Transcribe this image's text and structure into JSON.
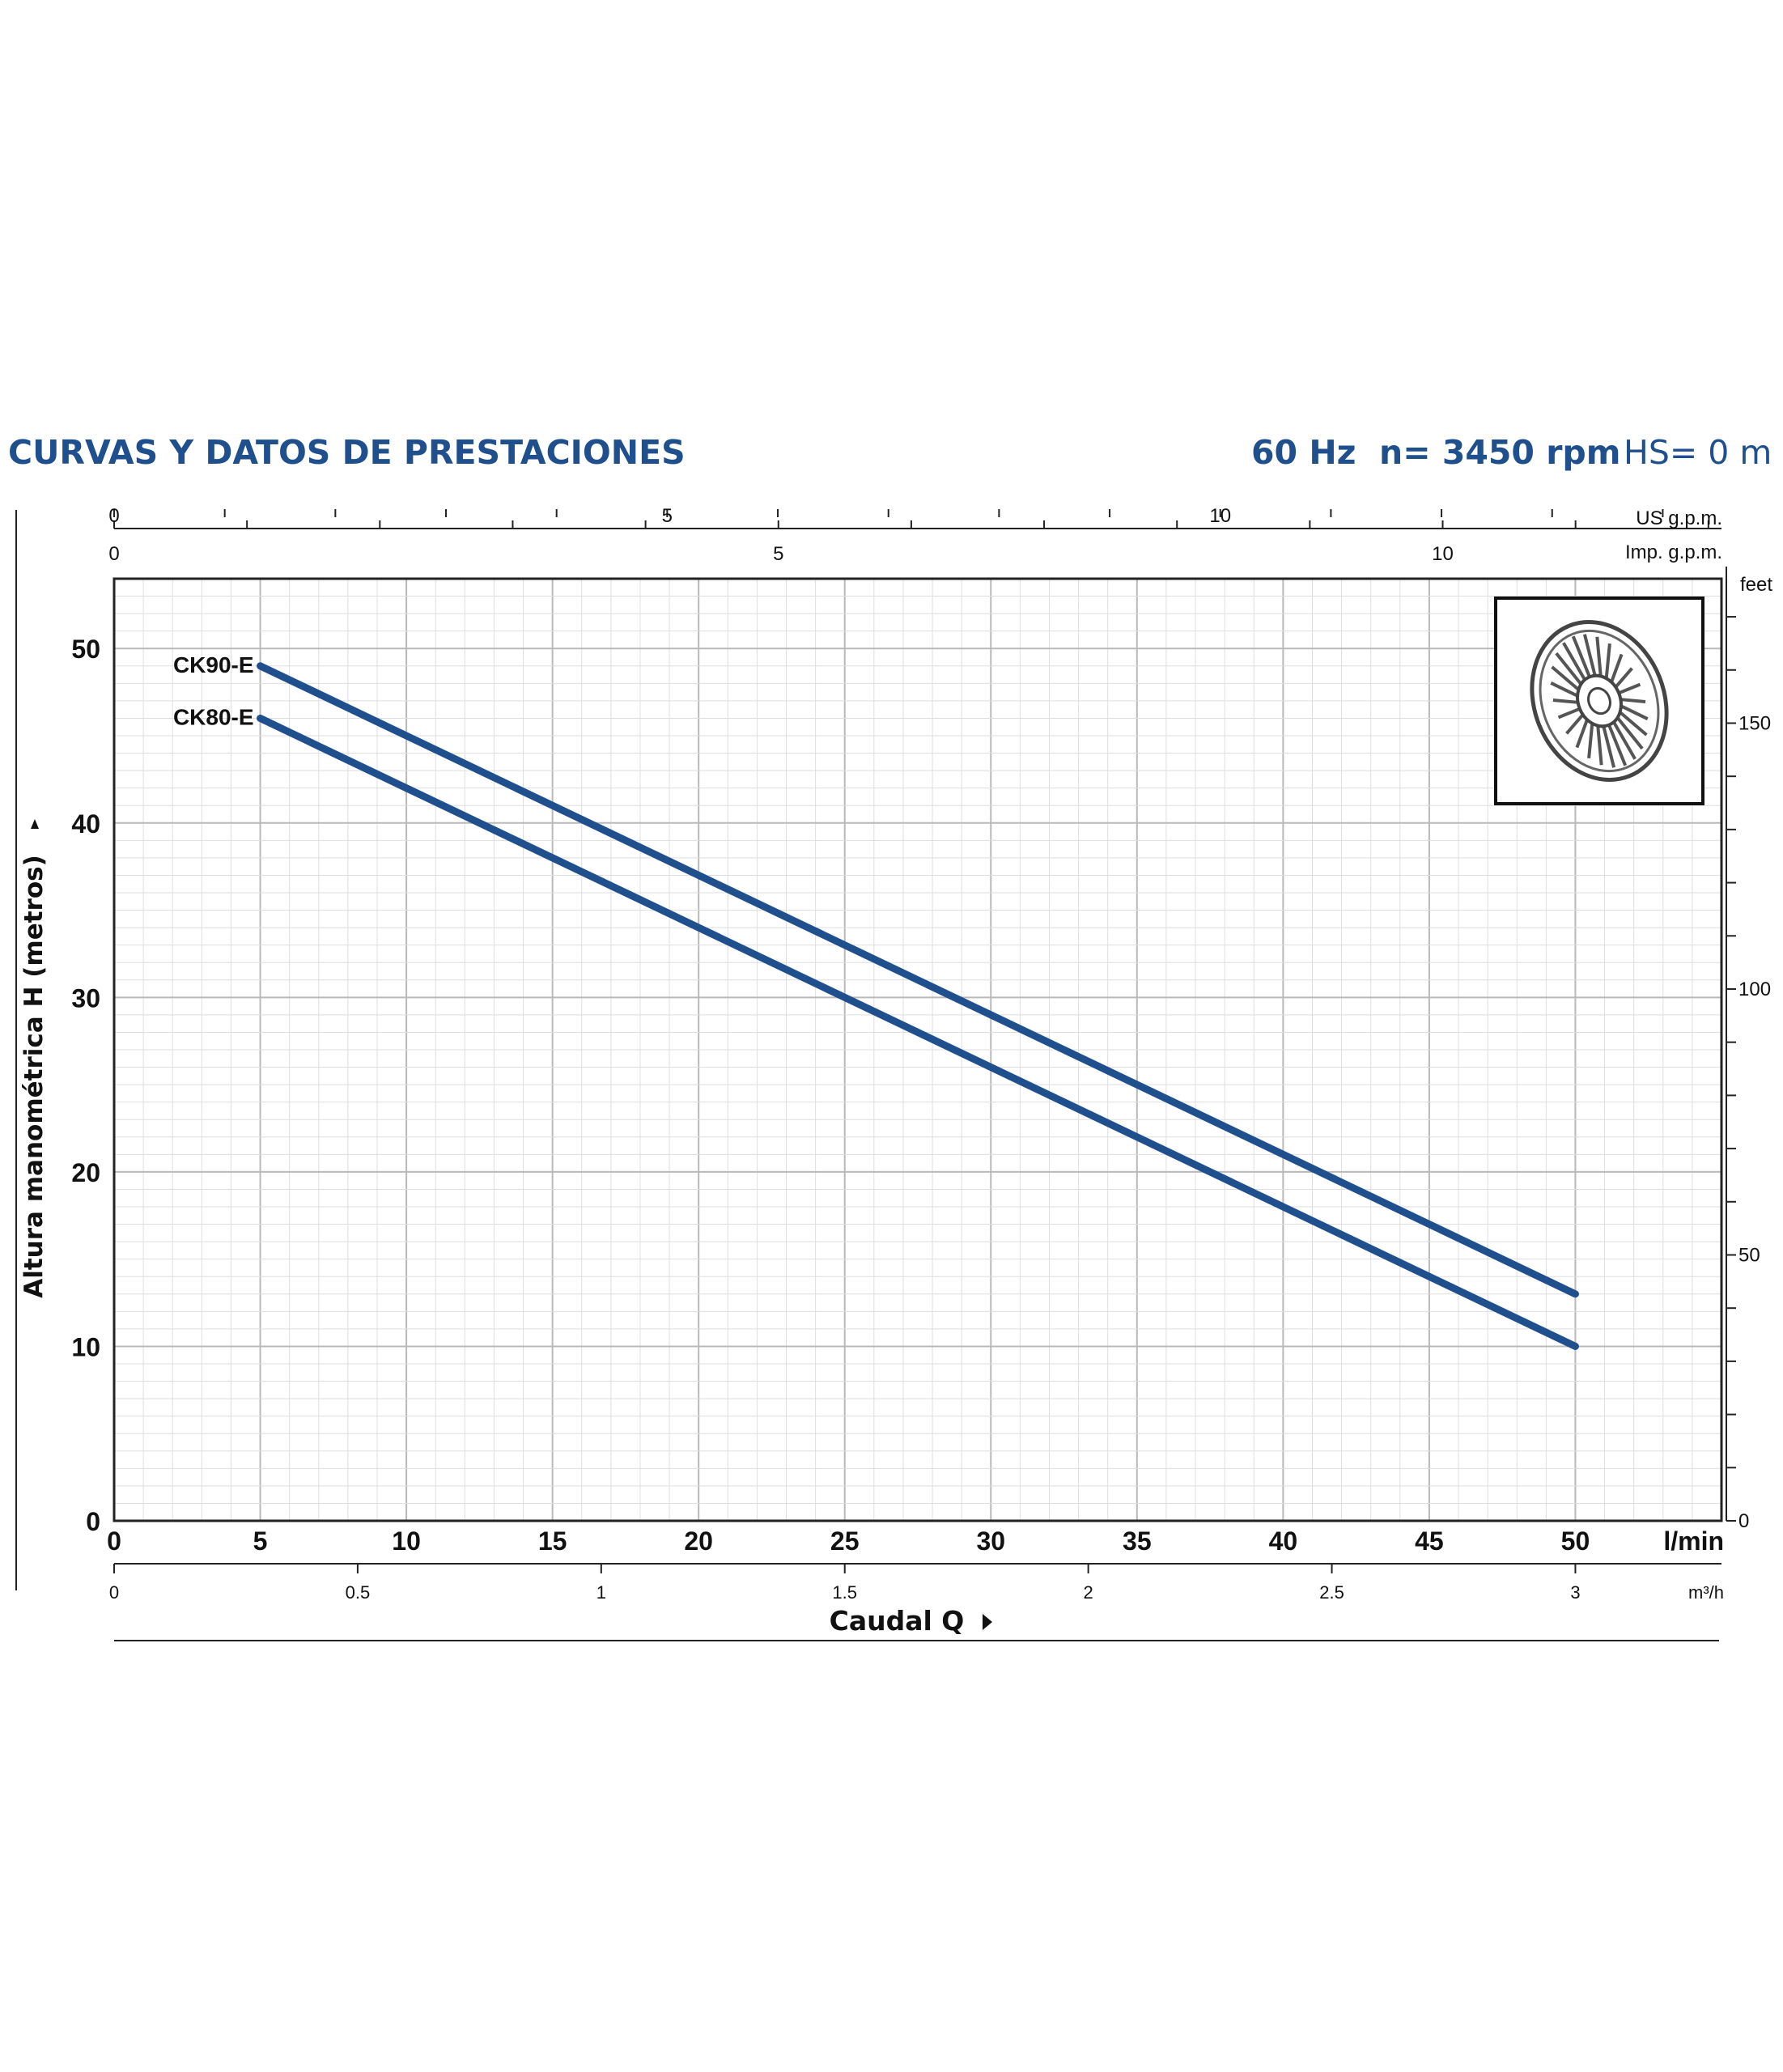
{
  "header": {
    "title": "CURVAS Y DATOS DE PRESTACIONES",
    "freq": "60 Hz",
    "speed": "n= 3450 rpm",
    "suction": "HS= 0 m"
  },
  "colors": {
    "title": "#1f4f8c",
    "curve": "#1f4f8c",
    "grid": "#c8c8c8",
    "axis": "#222222"
  },
  "chart_data": {
    "type": "line",
    "title": "CURVAS Y DATOS DE PRESTACIONES",
    "xlabel": "Caudal Q",
    "ylabel": "Altura manométrica H (metros)",
    "x_unit": "l/min",
    "xlim": [
      0,
      55
    ],
    "ylim": [
      0,
      54
    ],
    "x_ticks": [
      "0",
      "5",
      "10",
      "15",
      "20",
      "25",
      "30",
      "35",
      "40",
      "45",
      "50"
    ],
    "y_ticks": [
      "0",
      "10",
      "20",
      "30",
      "40",
      "50"
    ],
    "grid": true,
    "series": [
      {
        "name": "CK90-E",
        "x": [
          5,
          50
        ],
        "y": [
          49,
          13
        ]
      },
      {
        "name": "CK80-E",
        "x": [
          5,
          50
        ],
        "y": [
          46,
          10
        ]
      }
    ],
    "secondary_axes": {
      "us_gpm": {
        "unit": "US g.p.m.",
        "ticks": [
          "0",
          "5",
          "10"
        ]
      },
      "imp_gpm": {
        "unit": "Imp. g.p.m.",
        "ticks": [
          "0",
          "5",
          "10"
        ]
      },
      "m3h": {
        "unit": "m³/h",
        "ticks": [
          "0",
          "0.5",
          "1",
          "1.5",
          "2",
          "2.5",
          "3"
        ]
      },
      "feet": {
        "unit": "feet",
        "ticks": [
          "0",
          "50",
          "100",
          "150"
        ]
      }
    },
    "inset": "impeller-image"
  }
}
